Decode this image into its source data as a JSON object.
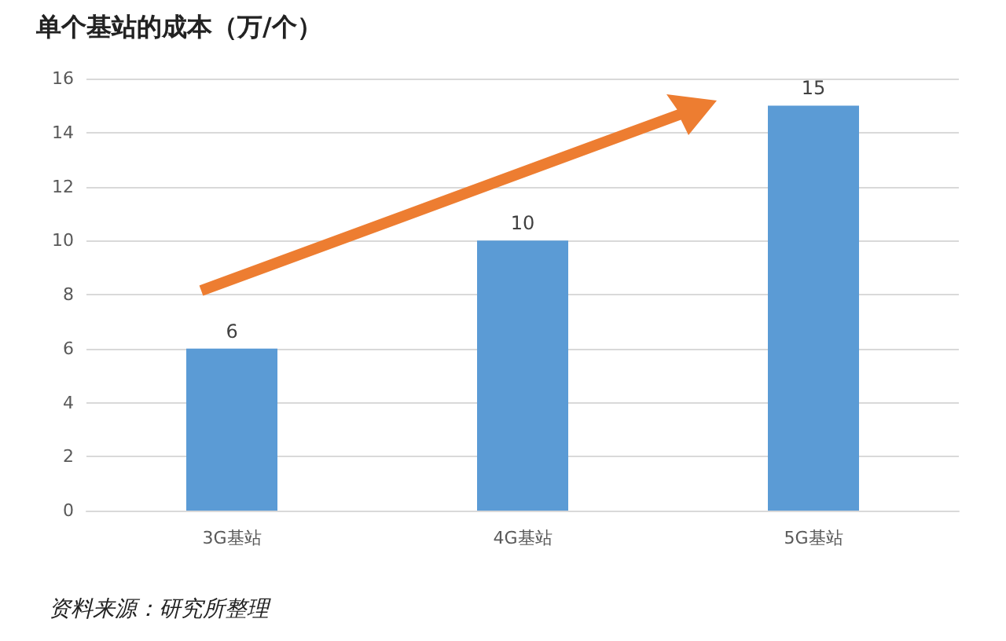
{
  "chart_data": {
    "type": "bar",
    "title": "单个基站的成本（万/个）",
    "categories": [
      "3G基站",
      "4G基站",
      "5G基站"
    ],
    "values": [
      6,
      10,
      15
    ],
    "color": "#5b9bd5",
    "ylim": [
      0,
      16
    ],
    "yticks": [
      0,
      2,
      4,
      6,
      8,
      10,
      12,
      14,
      16
    ],
    "grid": "y",
    "data_labels": true,
    "annotations": [
      "资料来源：研究所整理"
    ]
  }
}
